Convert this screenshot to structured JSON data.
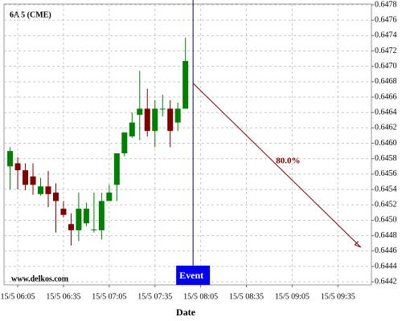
{
  "chart_data": {
    "type": "candlestick",
    "title": "6A 5 (CME)",
    "watermark": "www.delkos.com",
    "x_label": "Date",
    "x": [
      360,
      365,
      370,
      375,
      380,
      385,
      390,
      395,
      400,
      405,
      410,
      415,
      420,
      425,
      430,
      435,
      440,
      445,
      450,
      455,
      460,
      465,
      470,
      475
    ],
    "open": [
      0.6457,
      0.64574,
      0.64565,
      0.64557,
      0.64534,
      0.64544,
      0.64536,
      0.64515,
      0.64495,
      0.64487,
      0.64496,
      0.64488,
      0.64487,
      0.64525,
      0.64546,
      0.64587,
      0.64609,
      0.64637,
      0.64645,
      0.64616,
      0.64645,
      0.64645,
      0.64627,
      0.64645
    ],
    "high": [
      0.64595,
      0.64582,
      0.64574,
      0.64574,
      0.64555,
      0.64564,
      0.64548,
      0.64525,
      0.64509,
      0.64536,
      0.64523,
      0.64536,
      0.64536,
      0.64546,
      0.64587,
      0.64614,
      0.6464,
      0.64694,
      0.64671,
      0.64656,
      0.64663,
      0.64656,
      0.64653,
      0.64737
    ],
    "low": [
      0.6454,
      0.6454,
      0.64539,
      0.64533,
      0.64532,
      0.64517,
      0.64484,
      0.64504,
      0.64467,
      0.64473,
      0.64492,
      0.64484,
      0.64475,
      0.64525,
      0.64525,
      0.64583,
      0.64607,
      0.64604,
      0.64609,
      0.64595,
      0.64635,
      0.64595,
      0.64616,
      0.64645
    ],
    "close": [
      0.6459,
      0.64565,
      0.64546,
      0.64546,
      0.64544,
      0.64534,
      0.64525,
      0.64507,
      0.64487,
      0.64515,
      0.64515,
      0.64488,
      0.64525,
      0.64536,
      0.64587,
      0.64614,
      0.64627,
      0.64645,
      0.64616,
      0.64645,
      0.64645,
      0.64616,
      0.64645,
      0.64707
    ],
    "up_color": "#008000",
    "down_color": "#800000",
    "xlim": [
      356,
      597
    ],
    "xticks": [
      {
        "value": 365,
        "label": "15/5 06:05"
      },
      {
        "value": 395,
        "label": "15/5 06:35"
      },
      {
        "value": 425,
        "label": "15/5 07:05"
      },
      {
        "value": 455,
        "label": "15/5 07:35"
      },
      {
        "value": 485,
        "label": "15/5 08:05"
      },
      {
        "value": 515,
        "label": "15/5 08:35"
      },
      {
        "value": 545,
        "label": "15/5 09:05"
      },
      {
        "value": 575,
        "label": "15/5 09:35"
      }
    ],
    "ylim": [
      0.64416,
      0.64781
    ],
    "yticks": [
      0.6442,
      0.6444,
      0.6446,
      0.6448,
      {
        "value": 0.645,
        "label": "0.6450"
      },
      0.6452,
      0.6454,
      0.6456,
      0.6458,
      {
        "value": 0.646,
        "label": "0.6460"
      },
      0.6462,
      0.6464,
      0.6466,
      0.6468,
      {
        "value": 0.647,
        "label": "0.6470"
      },
      0.6472,
      0.6474,
      0.6476,
      0.6478
    ],
    "grid": true,
    "event": {
      "x": 480,
      "label": "Event",
      "color": "#000080",
      "box_color": "#0000ee"
    },
    "projection": {
      "x": [
        480,
        590
      ],
      "y": [
        0.64678,
        0.64465
      ],
      "label": "80.0%",
      "color": "#800000"
    }
  }
}
